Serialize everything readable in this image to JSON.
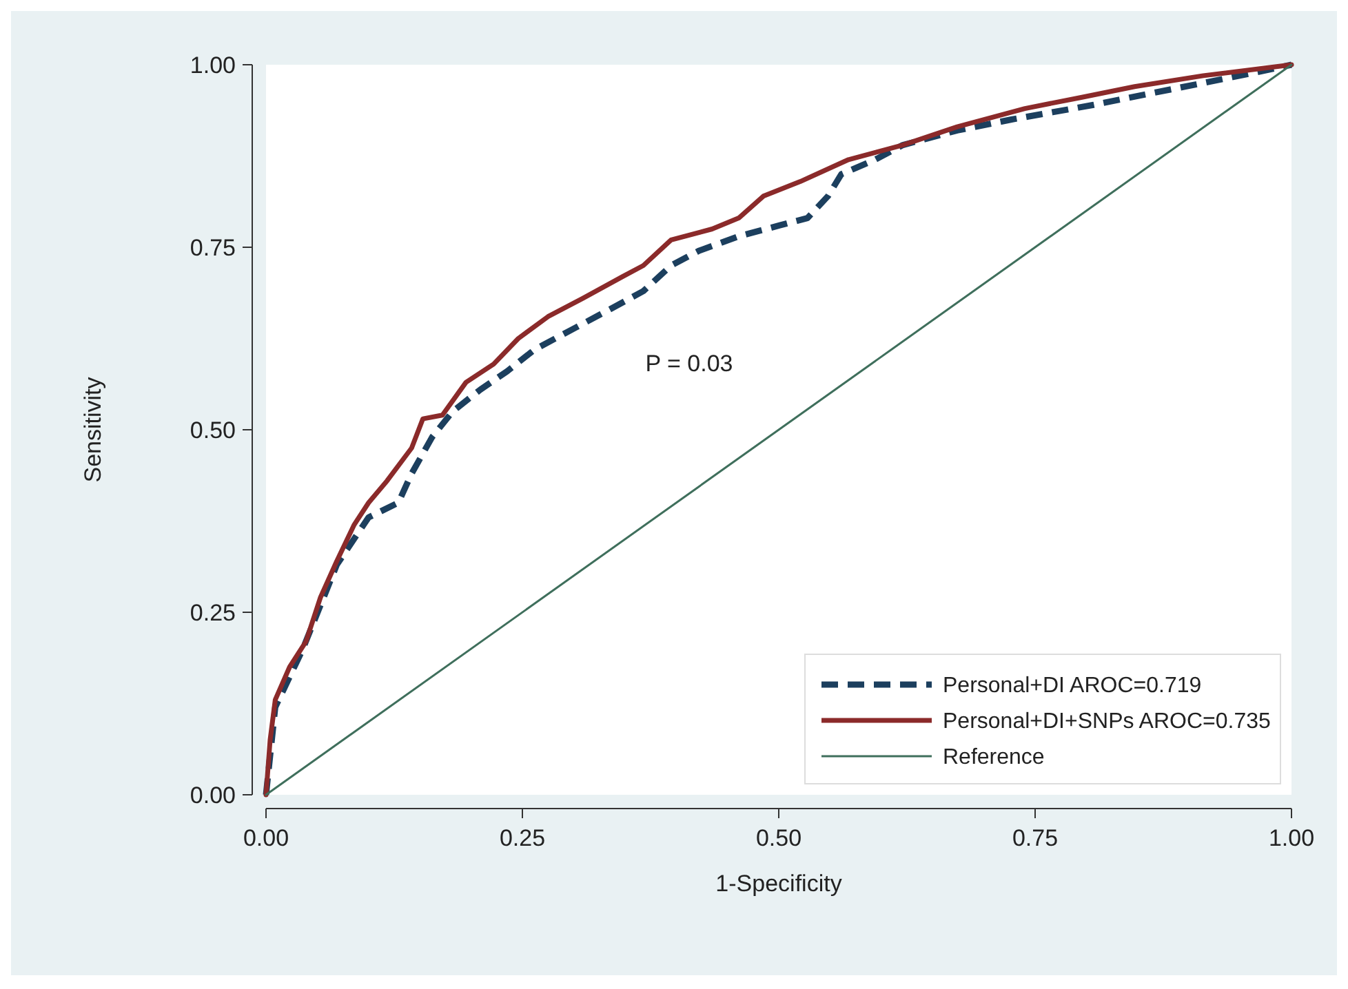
{
  "chart_data": {
    "type": "line",
    "xlabel": "1-Specificity",
    "ylabel": "Sensitivity",
    "xlim": [
      0,
      1
    ],
    "ylim": [
      0,
      1
    ],
    "xticks": [
      {
        "value": 0,
        "label": "0.00"
      },
      {
        "value": 0.25,
        "label": "0.25"
      },
      {
        "value": 0.5,
        "label": "0.50"
      },
      {
        "value": 0.75,
        "label": "0.75"
      },
      {
        "value": 1,
        "label": "1.00"
      }
    ],
    "yticks": [
      {
        "value": 0,
        "label": "0.00"
      },
      {
        "value": 0.25,
        "label": "0.25"
      },
      {
        "value": 0.5,
        "label": "0.50"
      },
      {
        "value": 0.75,
        "label": "0.75"
      },
      {
        "value": 1,
        "label": "1.00"
      }
    ],
    "grid": false,
    "legend": "bottom right",
    "marker": "none",
    "annotations": [
      "P = 0.03"
    ],
    "series": [
      {
        "name": "Personal+DI AROC=0.719",
        "color": "#1c3f5e",
        "line_style": "dashed",
        "x": [
          0,
          0.009,
          0.036,
          0.069,
          0.1,
          0.129,
          0.142,
          0.162,
          0.182,
          0.209,
          0.235,
          0.262,
          0.302,
          0.342,
          0.368,
          0.395,
          0.422,
          0.461,
          0.501,
          0.528,
          0.548,
          0.561,
          0.594,
          0.621,
          0.674,
          0.727,
          0.767,
          0.807,
          0.86,
          0.914,
          0.967,
          1
        ],
        "values": [
          0,
          0.12,
          0.2,
          0.315,
          0.38,
          0.4,
          0.44,
          0.49,
          0.525,
          0.555,
          0.58,
          0.61,
          0.64,
          0.67,
          0.69,
          0.725,
          0.745,
          0.765,
          0.78,
          0.79,
          0.82,
          0.85,
          0.87,
          0.89,
          0.91,
          0.925,
          0.935,
          0.945,
          0.96,
          0.975,
          0.99,
          1
        ]
      },
      {
        "name": "Personal+DI+SNPs AROC=0.735",
        "color": "#8b2a2a",
        "line_style": "solid",
        "x": [
          0,
          0.004,
          0.009,
          0.023,
          0.039,
          0.053,
          0.069,
          0.086,
          0.1,
          0.118,
          0.142,
          0.153,
          0.172,
          0.195,
          0.222,
          0.246,
          0.275,
          0.309,
          0.348,
          0.368,
          0.395,
          0.435,
          0.461,
          0.485,
          0.521,
          0.568,
          0.621,
          0.674,
          0.74,
          0.794,
          0.847,
          0.914,
          1
        ],
        "values": [
          0,
          0.075,
          0.13,
          0.175,
          0.21,
          0.27,
          0.32,
          0.37,
          0.4,
          0.43,
          0.475,
          0.515,
          0.52,
          0.565,
          0.59,
          0.625,
          0.655,
          0.68,
          0.71,
          0.725,
          0.76,
          0.775,
          0.79,
          0.82,
          0.84,
          0.87,
          0.89,
          0.915,
          0.94,
          0.955,
          0.97,
          0.985,
          1
        ]
      },
      {
        "name": "Reference",
        "color": "#3f6f5c",
        "line_style": "solid",
        "x": [
          0,
          1
        ],
        "values": [
          0,
          1
        ]
      }
    ]
  }
}
